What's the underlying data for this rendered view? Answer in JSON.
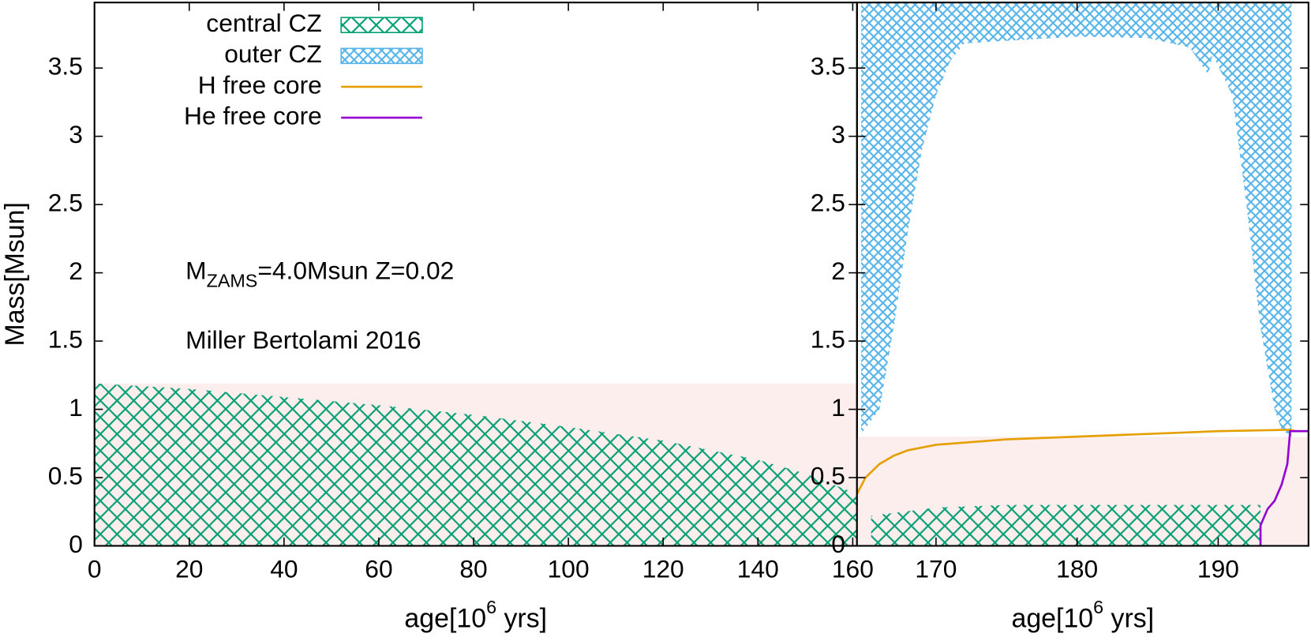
{
  "chart_data": [
    {
      "type": "area",
      "xlabel": [
        "age[10",
        "6",
        " yrs]"
      ],
      "ylabel": "Mass[Msun]",
      "annotations": [
        [
          "M",
          "ZAMS",
          "=4.0Msun Z=0.02"
        ],
        [
          "Miller Bertolami 2016"
        ]
      ],
      "legend": [
        {
          "name": "central CZ",
          "color": "#009e73",
          "style": "hatch"
        },
        {
          "name": "outer CZ",
          "color": "#56b4e9",
          "style": "finehatch"
        },
        {
          "name": "H free core",
          "color": "#e69f00",
          "style": "line"
        },
        {
          "name": "He free core",
          "color": "#9400d3",
          "style": "line"
        }
      ],
      "xlim": [
        0,
        160.9
      ],
      "xticks": [
        0,
        20,
        40,
        60,
        80,
        100,
        120,
        140,
        160
      ],
      "ylim": [
        0,
        3.98
      ],
      "yticks": [
        0,
        0.5,
        1,
        1.5,
        2,
        2.5,
        3,
        3.5
      ],
      "series": [
        {
          "style": "shade",
          "color": "#fdeeee",
          "x": [
            0,
            160.9
          ],
          "values": [
            1.19,
            1.19
          ]
        },
        {
          "style": "hatch",
          "color": "#009e73",
          "x": [
            0,
            20,
            40,
            60,
            80,
            100,
            120,
            140,
            150,
            160.9
          ],
          "values": [
            1.19,
            1.15,
            1.09,
            1.03,
            0.96,
            0.87,
            0.77,
            0.63,
            0.53,
            0.38
          ]
        }
      ]
    },
    {
      "type": "area",
      "xlabel": [
        "age[10",
        "6",
        " yrs]"
      ],
      "xlim": [
        164.4,
        196.4
      ],
      "xticks": [
        170,
        180,
        190
      ],
      "ylim": [
        0,
        3.98
      ],
      "yticks": [
        0,
        0.5,
        1,
        1.5,
        2,
        2.5,
        3,
        3.5
      ],
      "series": [
        {
          "style": "shade",
          "color": "#fdeeee",
          "x": [
            164.4,
            196.4
          ],
          "values": [
            0.8,
            0.8
          ]
        },
        {
          "style": "finehatch",
          "color": "#56b4e9",
          "x": [
            164.7,
            166,
            167,
            168,
            169,
            170,
            171,
            172,
            175,
            180,
            185,
            188,
            189.3,
            189.6,
            191,
            192,
            193,
            194,
            194.5,
            195.2
          ],
          "lower": [
            0.82,
            1.0,
            1.6,
            2.3,
            2.9,
            3.3,
            3.55,
            3.68,
            3.7,
            3.73,
            3.72,
            3.65,
            3.45,
            3.6,
            3.3,
            2.5,
            1.6,
            1.0,
            0.85,
            0.8
          ],
          "values": [
            3.98,
            3.98,
            3.98,
            3.98,
            3.98,
            3.98,
            3.98,
            3.98,
            3.98,
            3.98,
            3.98,
            3.98,
            3.98,
            3.98,
            3.98,
            3.98,
            3.98,
            3.98,
            3.98,
            3.98
          ]
        },
        {
          "style": "hatch",
          "color": "#009e73",
          "x": [
            165.4,
            170,
            175,
            180,
            185,
            190,
            193
          ],
          "values": [
            0.22,
            0.28,
            0.3,
            0.3,
            0.3,
            0.3,
            0.3
          ]
        },
        {
          "style": "line",
          "color": "#e69f00",
          "x": [
            164.4,
            165,
            166,
            167,
            168,
            170,
            175,
            180,
            185,
            190,
            195,
            195.5,
            196.4
          ],
          "values": [
            0.38,
            0.5,
            0.6,
            0.66,
            0.7,
            0.74,
            0.78,
            0.8,
            0.82,
            0.84,
            0.85,
            0.84,
            0.84
          ]
        },
        {
          "style": "line",
          "color": "#9400d3",
          "x": [
            193,
            193,
            193.5,
            194,
            194.5,
            194.9,
            195.1,
            196.4
          ],
          "values": [
            0,
            0.15,
            0.27,
            0.33,
            0.45,
            0.6,
            0.84,
            0.84
          ]
        }
      ]
    }
  ]
}
